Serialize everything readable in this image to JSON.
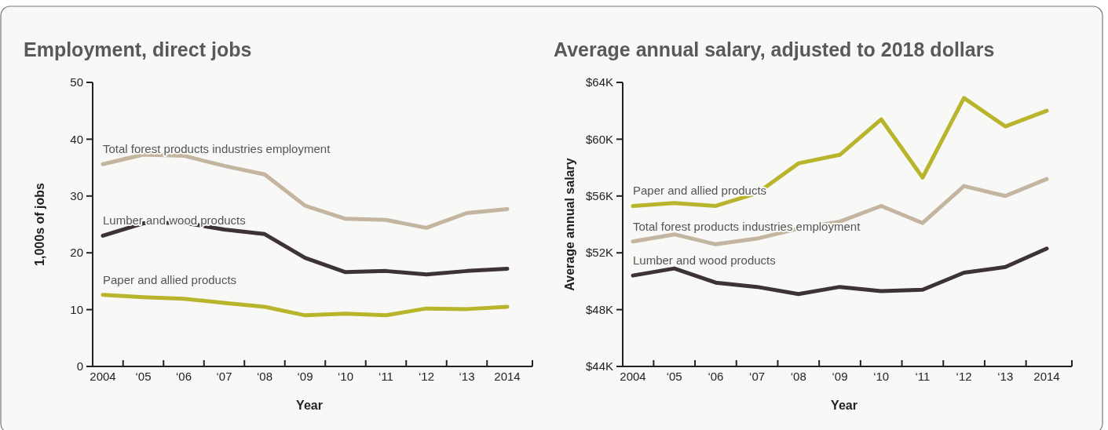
{
  "chart_data": [
    {
      "type": "line",
      "title": "Employment, direct jobs",
      "xlabel": "Year",
      "ylabel": "1,000s of jobs",
      "categories": [
        "2004",
        "‘05",
        "‘06",
        "‘07",
        "‘08",
        "‘09",
        "‘10",
        "‘11",
        "‘12",
        "‘13",
        "2014"
      ],
      "ylim": [
        0,
        50
      ],
      "yticks": [
        0,
        10,
        20,
        30,
        40,
        50
      ],
      "series": [
        {
          "name": "Total forest products industries employment",
          "color": "#c4b5a0",
          "values": [
            35.6,
            37.3,
            37.1,
            35.3,
            33.8,
            28.3,
            26.0,
            25.8,
            24.4,
            27.0,
            27.7
          ]
        },
        {
          "name": "Lumber and wood products",
          "color": "#3d3336",
          "values": [
            23.0,
            25.2,
            25.3,
            24.1,
            23.3,
            19.1,
            16.6,
            16.8,
            16.2,
            16.8,
            17.2
          ]
        },
        {
          "name": "Paper and allied products",
          "color": "#b8b52c",
          "values": [
            12.6,
            12.2,
            11.9,
            11.2,
            10.5,
            9.0,
            9.3,
            9.0,
            10.2,
            10.1,
            10.5
          ]
        }
      ]
    },
    {
      "type": "line",
      "title": "Average annual salary, adjusted to 2018 dollars",
      "xlabel": "Year",
      "ylabel": "Average annual salary",
      "categories": [
        "2004",
        "‘05",
        "‘06",
        "‘07",
        "‘08",
        "‘09",
        "‘10",
        "‘11",
        "‘12",
        "‘13",
        "2014"
      ],
      "ylim": [
        44,
        64
      ],
      "yticks": [
        {
          "value": 44,
          "label": "$44K"
        },
        {
          "value": 48,
          "label": "$48K"
        },
        {
          "value": 52,
          "label": "$52K"
        },
        {
          "value": 56,
          "label": "$56K"
        },
        {
          "value": 60,
          "label": "$60K"
        },
        {
          "value": 64,
          "label": "$64K"
        }
      ],
      "series": [
        {
          "name": "Paper and allied products",
          "color": "#b8b52c",
          "values": [
            55.3,
            55.5,
            55.3,
            56.2,
            58.3,
            58.9,
            61.4,
            57.3,
            62.9,
            60.9,
            62.0
          ]
        },
        {
          "name": "Total forest products industries employment",
          "color": "#c4b5a0",
          "values": [
            52.8,
            53.3,
            52.6,
            53.0,
            53.7,
            54.2,
            55.3,
            54.1,
            56.7,
            56.0,
            57.2
          ]
        },
        {
          "name": "Lumber and wood products",
          "color": "#3d3336",
          "values": [
            50.4,
            50.9,
            49.9,
            49.6,
            49.1,
            49.6,
            49.3,
            49.4,
            50.6,
            51.0,
            52.3
          ]
        }
      ]
    }
  ]
}
